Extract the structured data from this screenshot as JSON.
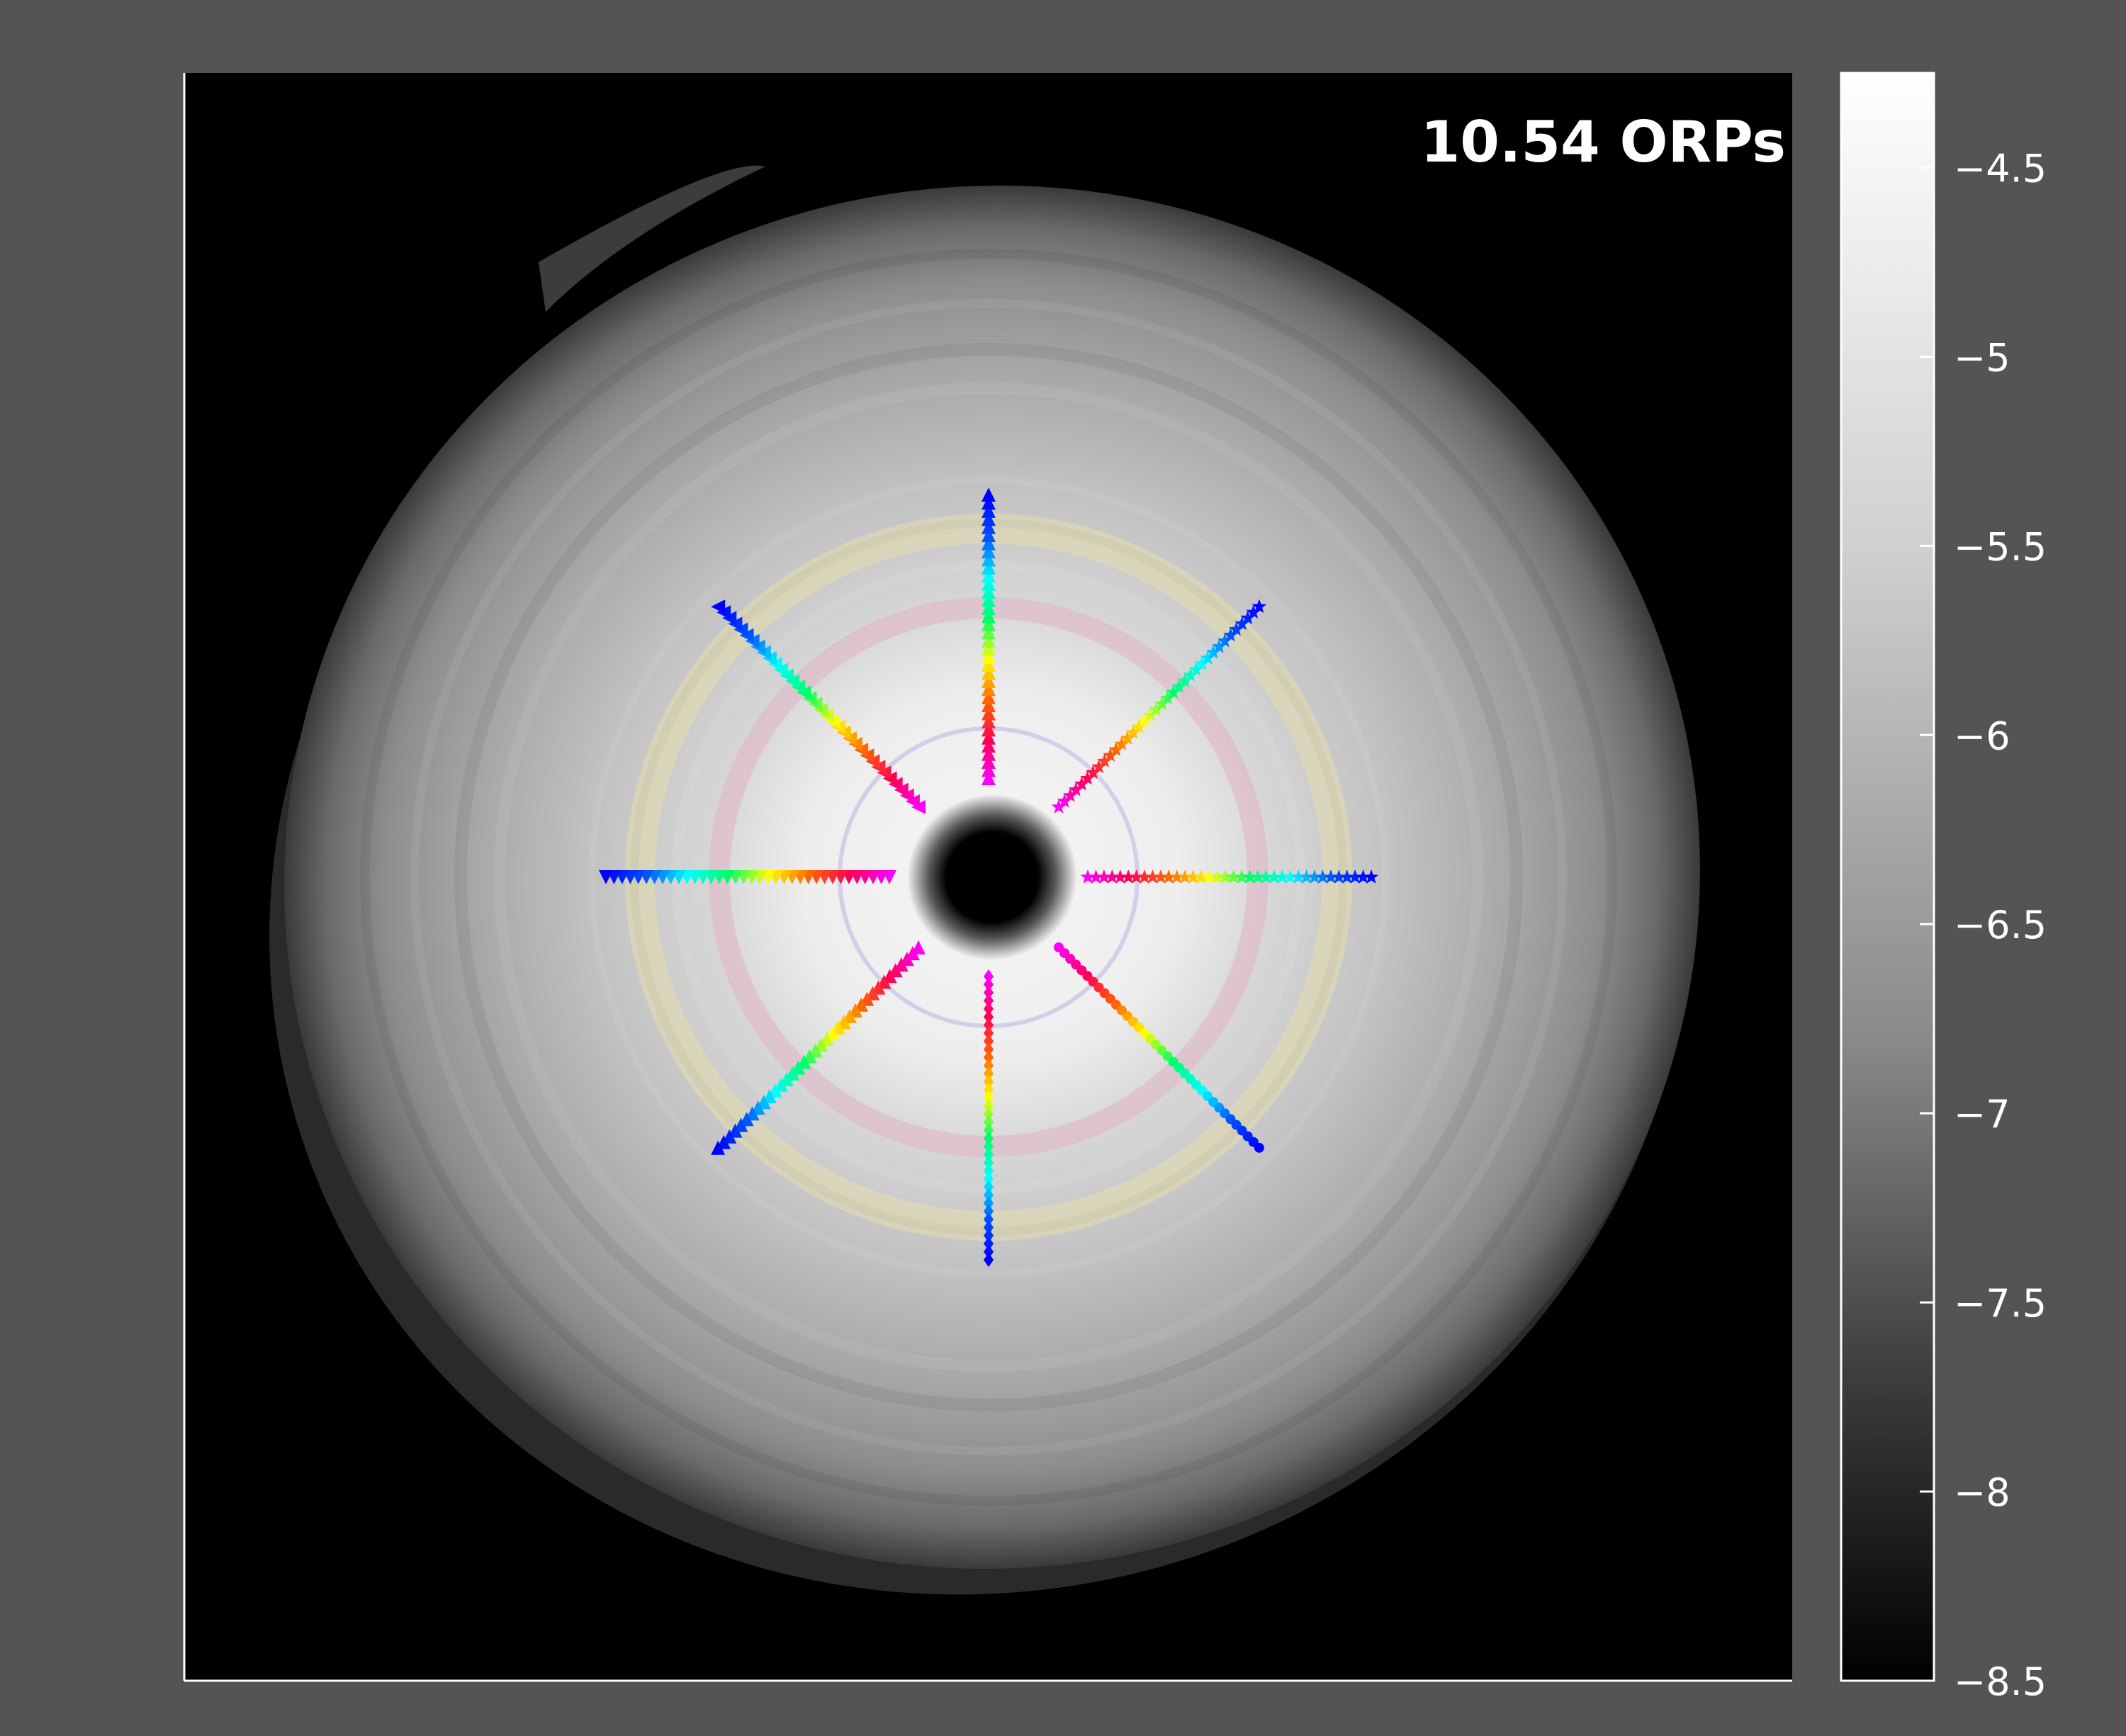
{
  "chart_data": {
    "type": "heatmap",
    "title": "",
    "annotation": "10.54 ORPs",
    "xlabel": "",
    "ylabel": "",
    "colormap": "grayscale (black = low, white = high)",
    "colorbar": {
      "range": [
        -8.5,
        -4.25
      ],
      "ticks": [
        -4.5,
        -5,
        -5.5,
        -6,
        -6.5,
        -7,
        -7.5,
        -8,
        -8.5
      ],
      "tick_labels": [
        "−4.5",
        "−5",
        "−5.5",
        "−6",
        "−6.5",
        "−7",
        "−7.5",
        "−8",
        "−8.5"
      ],
      "placement": "right"
    },
    "rings": [
      {
        "color": "#e8e3a8",
        "radius_rel": 0.85
      },
      {
        "color": "#e0b6c6",
        "radius_rel": 0.66
      },
      {
        "color": "#c8bfe6",
        "radius_rel": 0.37
      }
    ],
    "tracer_rays": {
      "count": 8,
      "color_sequence": [
        "#ff00ff",
        "#ff0055",
        "#ff6600",
        "#ffff00",
        "#00ff66",
        "#00ffff",
        "#0055ff",
        "#0000ff"
      ],
      "angles_deg": [
        0,
        45,
        90,
        135,
        180,
        225,
        270,
        315
      ],
      "markers": [
        "star",
        "star",
        "triangle-up",
        "triangle-left",
        "triangle-down",
        "triangle-up",
        "diamond",
        "circle"
      ]
    },
    "background_color": "#000000",
    "frame_color": "#ffffff"
  }
}
